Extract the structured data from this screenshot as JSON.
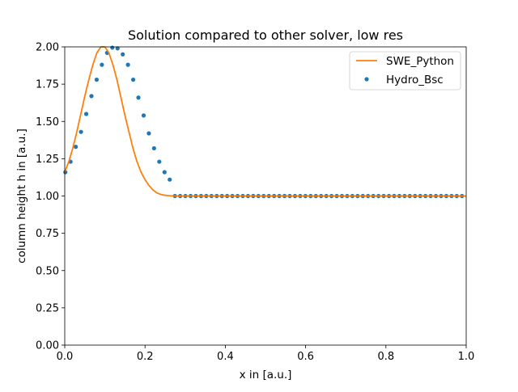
{
  "chart_data": {
    "type": "line",
    "title": "Solution compared to other solver, low res",
    "xlabel": "x in [a.u.]",
    "ylabel": "column height h in [a.u.]",
    "xlim": [
      0,
      1
    ],
    "ylim": [
      0,
      2
    ],
    "xticks": [
      "0.0",
      "0.2",
      "0.4",
      "0.6",
      "0.8",
      "1.0"
    ],
    "yticks": [
      "0.00",
      "0.25",
      "0.50",
      "0.75",
      "1.00",
      "1.25",
      "1.50",
      "1.75",
      "2.00"
    ],
    "grid": false,
    "legend_position": "top-right",
    "series": [
      {
        "name": "SWE_Python",
        "kind": "line",
        "color": "#ff7f0e",
        "x": [
          0.0,
          0.01,
          0.02,
          0.03,
          0.04,
          0.05,
          0.06,
          0.07,
          0.08,
          0.09,
          0.1,
          0.11,
          0.12,
          0.13,
          0.14,
          0.15,
          0.16,
          0.17,
          0.18,
          0.19,
          0.2,
          0.21,
          0.22,
          0.23,
          0.24,
          0.25,
          0.26,
          0.27,
          0.28,
          0.3,
          0.4,
          0.5,
          0.6,
          0.7,
          0.8,
          0.9,
          1.0
        ],
        "y": [
          1.16,
          1.23,
          1.32,
          1.43,
          1.55,
          1.67,
          1.78,
          1.88,
          1.96,
          2.0,
          2.0,
          1.96,
          1.88,
          1.78,
          1.66,
          1.54,
          1.43,
          1.32,
          1.23,
          1.16,
          1.11,
          1.07,
          1.04,
          1.02,
          1.01,
          1.005,
          1.002,
          1.0,
          1.0,
          1.0,
          1.0,
          1.0,
          1.0,
          1.0,
          1.0,
          1.0,
          1.0
        ]
      },
      {
        "name": "Hydro_Bsc",
        "kind": "scatter",
        "color": "#1f77b4",
        "x": [
          0.0015,
          0.0145,
          0.0275,
          0.0405,
          0.0535,
          0.0665,
          0.0795,
          0.0925,
          0.1055,
          0.1185,
          0.1315,
          0.1445,
          0.1575,
          0.1705,
          0.1835,
          0.1965,
          0.2095,
          0.2225,
          0.2355,
          0.2485,
          0.2615
        ],
        "y": [
          1.16,
          1.23,
          1.33,
          1.43,
          1.55,
          1.67,
          1.78,
          1.88,
          1.96,
          1.995,
          1.99,
          1.95,
          1.88,
          1.78,
          1.66,
          1.54,
          1.42,
          1.32,
          1.23,
          1.16,
          1.11
        ],
        "flat_y": 1.0,
        "flat_x_start": 0.2095,
        "flat_x_step": 0.013
      }
    ]
  }
}
